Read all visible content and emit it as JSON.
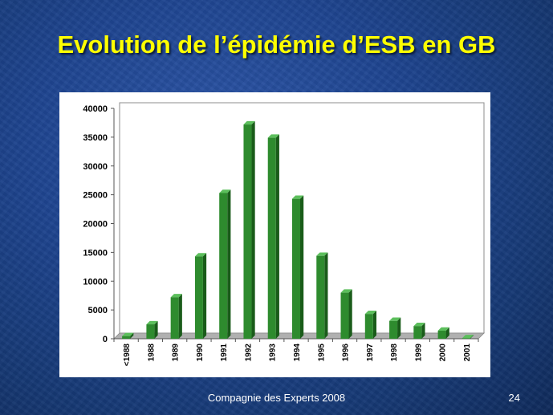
{
  "slide": {
    "title": "Evolution de l’épidémie d’ESB en GB",
    "footer": "Compagnie des Experts 2008",
    "page_number": "24"
  },
  "colors": {
    "bar_front": "#2e8b2e",
    "bar_side": "#1a5c1a",
    "bar_top": "#5cbf5c",
    "title": "#ffff00"
  },
  "chart_data": {
    "type": "bar",
    "categories": [
      "<1988",
      "1988",
      "1989",
      "1990",
      "1991",
      "1992",
      "1993",
      "1994",
      "1995",
      "1996",
      "1997",
      "1998",
      "1999",
      "2000",
      "2001"
    ],
    "values": [
      450,
      2500,
      7200,
      14300,
      25300,
      37200,
      34900,
      24300,
      14400,
      8000,
      4300,
      3100,
      2200,
      1400,
      100
    ],
    "yticks": [
      0,
      5000,
      10000,
      15000,
      20000,
      25000,
      30000,
      35000,
      40000
    ],
    "ylim": [
      0,
      40000
    ],
    "title": "",
    "xlabel": "",
    "ylabel": "",
    "grid": false,
    "legend": false
  }
}
